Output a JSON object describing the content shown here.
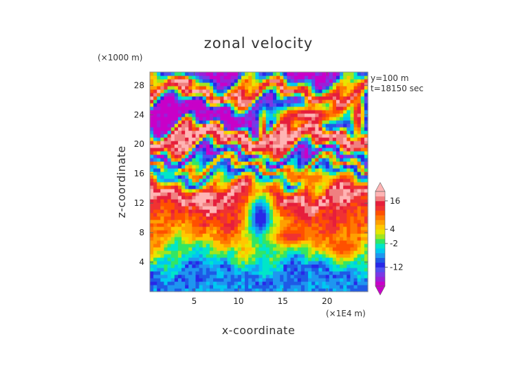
{
  "chart_data": {
    "type": "heatmap",
    "title": "zonal velocity",
    "xlabel": "x-coordinate",
    "ylabel": "z-coordinate",
    "x_unit": "(×1E4 m)",
    "y_unit": "(×1000 m)",
    "info": [
      "y=100 m",
      "t=18150 sec"
    ],
    "xlim": [
      0,
      24.6
    ],
    "ylim": [
      0,
      29.8
    ],
    "xticks": [
      5,
      10,
      15,
      20
    ],
    "yticks": [
      4,
      8,
      12,
      16,
      20,
      24,
      28
    ],
    "colorbar": {
      "levels": [
        -20,
        -18,
        -16,
        -14,
        -12,
        -10,
        -8,
        -6,
        -4,
        -2,
        0,
        2,
        4,
        6,
        8,
        10,
        12,
        14,
        16,
        18,
        20
      ],
      "labels": [
        16,
        4,
        -2,
        -12
      ],
      "colors": [
        "#c800c8",
        "#9b1fd8",
        "#7a38e6",
        "#5050f0",
        "#2828e8",
        "#1e5ae6",
        "#1e96f0",
        "#00c8f0",
        "#00e6c8",
        "#32e664",
        "#a0e61e",
        "#e6e600",
        "#ffc800",
        "#ffa000",
        "#ff7800",
        "#ff5000",
        "#f03232",
        "#e61e3c",
        "#f08080",
        "#ffb4b4"
      ],
      "extend": "both"
    },
    "field_bands": [
      {
        "z": 0.5,
        "value": -7
      },
      {
        "z": 2.5,
        "value": -9
      },
      {
        "z": 4.0,
        "value": -4
      },
      {
        "z": 5.5,
        "value": 0
      },
      {
        "z": 7.0,
        "value": 6
      },
      {
        "z": 8.5,
        "value": 9
      },
      {
        "z": 10.0,
        "value": 12
      },
      {
        "z": 11.5,
        "value": 14
      },
      {
        "z": 13.0,
        "value": 19
      },
      {
        "z": 14.5,
        "value": 8
      },
      {
        "z": 16.0,
        "value": -14
      },
      {
        "z": 17.0,
        "value": 12
      },
      {
        "z": 18.5,
        "value": -19
      },
      {
        "z": 20.0,
        "value": 15
      },
      {
        "z": 21.5,
        "value": 19
      },
      {
        "z": 23.0,
        "value": -19
      },
      {
        "z": 25.0,
        "value": -20
      },
      {
        "z": 27.0,
        "value": 19
      },
      {
        "z": 29.5,
        "value": -18
      }
    ],
    "features": [
      {
        "x": 18.0,
        "z": 24.0,
        "rx": 5.5,
        "rz": 1.8,
        "value": 19
      },
      {
        "x": 6.5,
        "z": 13.0,
        "rx": 3.0,
        "rz": 0.9,
        "value": 19
      },
      {
        "x": 12.5,
        "z": 10.0,
        "rx": 2.0,
        "rz": 5.0,
        "value": -12
      },
      {
        "x": 12.8,
        "z": 21.0,
        "rx": 0.6,
        "rz": 4.5,
        "value": 18
      },
      {
        "x": 23.5,
        "z": 24.0,
        "rx": 0.9,
        "rz": 5.0,
        "value": 17
      },
      {
        "x": 18.0,
        "z": 15.5,
        "rx": 4.0,
        "rz": 1.2,
        "value": 10
      },
      {
        "x": 16.0,
        "z": 7.5,
        "rx": 3.0,
        "rz": 1.5,
        "value": 13
      },
      {
        "x": 2.0,
        "z": 16.0,
        "rx": 1.8,
        "rz": 1.0,
        "value": -4
      },
      {
        "x": 4.0,
        "z": 28.5,
        "rx": 2.0,
        "rz": 1.0,
        "value": 19
      },
      {
        "x": 21.5,
        "z": 6.0,
        "rx": 2.0,
        "rz": 1.5,
        "value": 12
      }
    ]
  }
}
